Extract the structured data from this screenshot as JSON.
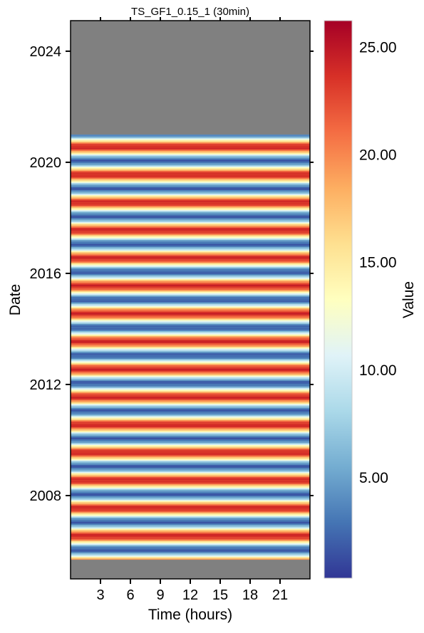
{
  "chart_data": {
    "type": "heatmap",
    "title": "TS_GF1_0.15_1 (30min)",
    "xlabel": "Time (hours)",
    "ylabel": "Date",
    "xlim": [
      0,
      24
    ],
    "x_ticks": [
      3,
      6,
      9,
      12,
      15,
      18,
      21
    ],
    "ylim": [
      2005.0,
      2025.1
    ],
    "y_ticks": [
      2008,
      2012,
      2016,
      2020,
      2024
    ],
    "data_range": [
      2005.7,
      2021.0
    ],
    "missing_color": "#808080",
    "colorbar": {
      "label": "Value",
      "min": 0.3,
      "max": 26.2,
      "ticks": [
        "5.00",
        "10.00",
        "15.00",
        "20.00",
        "25.00"
      ],
      "tick_values": [
        5,
        10,
        15,
        20,
        25
      ],
      "colormap": "RdYlBu_r",
      "colors": [
        "#313695",
        "#4575b4",
        "#74add1",
        "#abd9e9",
        "#e0f3f8",
        "#ffffbf",
        "#fee090",
        "#fdae61",
        "#f46d43",
        "#d73027",
        "#a50026"
      ]
    },
    "pattern": {
      "description": "Annual seasonal cycle: warm (red) in summer, cold (blue) in winter; value roughly constant across hours of day",
      "winter_min": 2,
      "summer_max": 24
    }
  }
}
